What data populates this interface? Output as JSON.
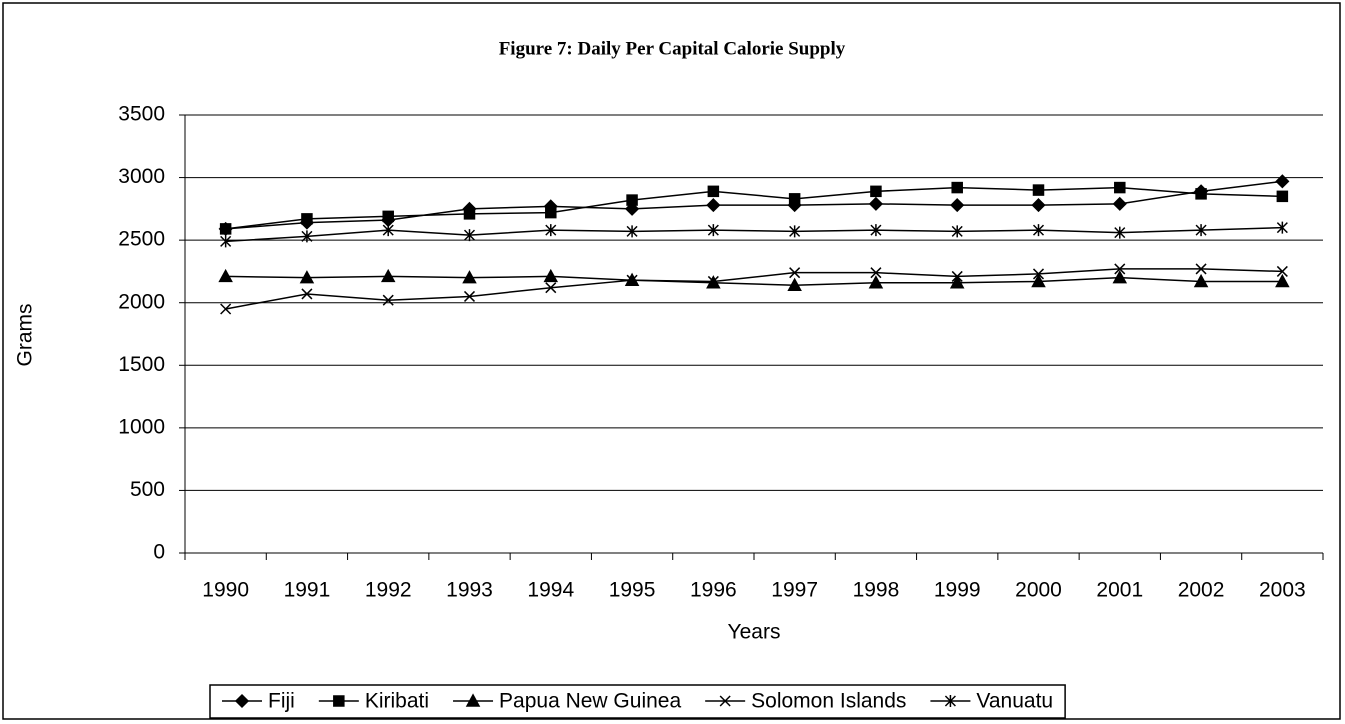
{
  "chart_data": {
    "type": "line",
    "title": "Figure 7: Daily Per Capital Calorie Supply",
    "x_label": "Years",
    "y_label": "Grams",
    "categories": [
      "1990",
      "1991",
      "1992",
      "1993",
      "1994",
      "1995",
      "1996",
      "1997",
      "1998",
      "1999",
      "2000",
      "2001",
      "2002",
      "2003"
    ],
    "series": [
      {
        "name": "Fiji",
        "color": "#000000",
        "marker": "diamond",
        "values": [
          2590,
          2640,
          2660,
          2750,
          2770,
          2750,
          2780,
          2780,
          2790,
          2780,
          2780,
          2790,
          2890,
          2970
        ]
      },
      {
        "name": "Kiribati",
        "color": "#000000",
        "marker": "square",
        "values": [
          2590,
          2670,
          2690,
          2710,
          2720,
          2820,
          2890,
          2830,
          2890,
          2920,
          2900,
          2920,
          2870,
          2850
        ]
      },
      {
        "name": "Papua New Guinea",
        "color": "#000000",
        "marker": "triangle",
        "values": [
          2210,
          2200,
          2210,
          2200,
          2210,
          2180,
          2160,
          2140,
          2160,
          2160,
          2170,
          2200,
          2170,
          2170
        ]
      },
      {
        "name": "Solomon Islands",
        "color": "#000000",
        "marker": "x",
        "values": [
          1950,
          2070,
          2020,
          2050,
          2120,
          2180,
          2170,
          2240,
          2240,
          2210,
          2230,
          2270,
          2270,
          2250
        ]
      },
      {
        "name": "Vanuatu",
        "color": "#000000",
        "marker": "asterisk",
        "values": [
          2490,
          2530,
          2580,
          2540,
          2580,
          2570,
          2580,
          2570,
          2580,
          2570,
          2580,
          2560,
          2580,
          2600
        ]
      }
    ],
    "ylim": [
      0,
      3500
    ],
    "yticks": [
      0,
      500,
      1000,
      1500,
      2000,
      2500,
      3000,
      3500
    ],
    "grid": true,
    "legend": "bottom"
  }
}
